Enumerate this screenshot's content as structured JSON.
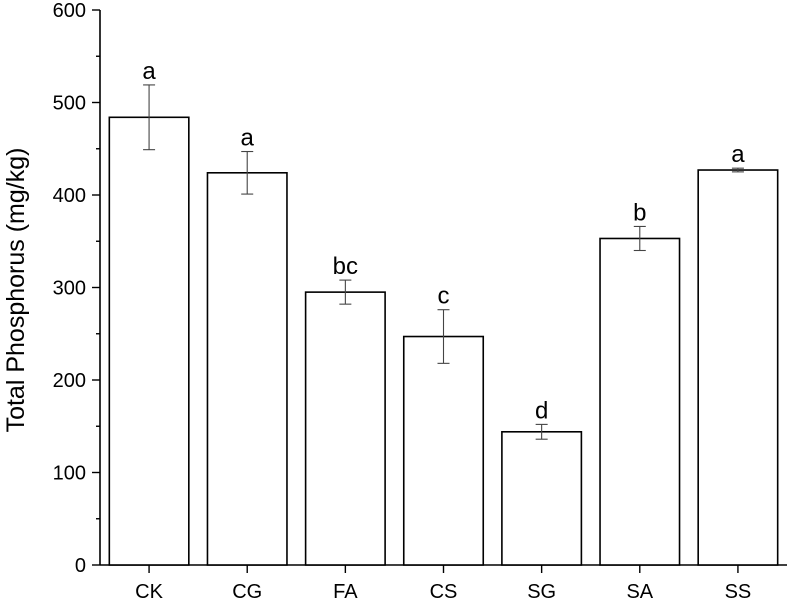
{
  "chart_data": {
    "type": "bar",
    "title": "",
    "xlabel": "",
    "ylabel": "Total Phosphorus (mg/kg)",
    "ylim": [
      0,
      600
    ],
    "yticks": [
      0,
      100,
      200,
      300,
      400,
      500,
      600
    ],
    "grid": false,
    "categories": [
      "CK",
      "CG",
      "FA",
      "CS",
      "SG",
      "SA",
      "SS"
    ],
    "values": [
      484,
      424,
      295,
      247,
      144,
      353,
      427
    ],
    "errors": [
      35,
      23,
      13,
      29,
      8,
      13,
      2
    ],
    "labels": [
      "a",
      "a",
      "bc",
      "c",
      "d",
      "b",
      "a"
    ],
    "colors": {
      "bar_fill": "#ffffff",
      "bar_stroke": "#000000",
      "error": "#444444"
    }
  }
}
